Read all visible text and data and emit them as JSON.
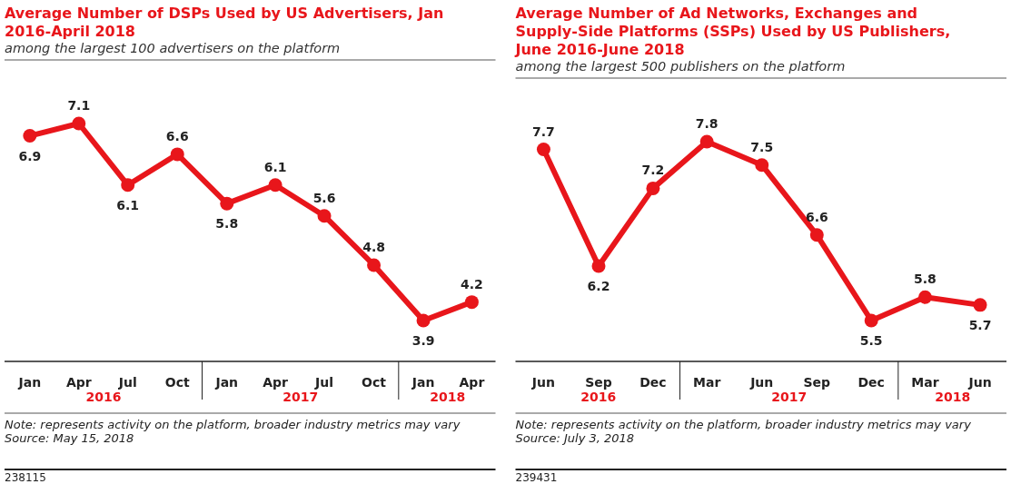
{
  "chart_data": [
    {
      "type": "line",
      "title": "Average Number of DSPs Used by US Advertisers, Jan 2016-April 2018",
      "subtitle": "among the largest 100 advertisers on the platform",
      "x": [
        "2016-01",
        "2016-04",
        "2016-07",
        "2016-10",
        "2017-01",
        "2017-04",
        "2017-07",
        "2017-10",
        "2018-01",
        "2018-04"
      ],
      "xlim": [
        "2015-11-15",
        "2018-05-15"
      ],
      "xticks": [
        {
          "value": "2016-01",
          "label": "Jan"
        },
        {
          "value": "2016-04",
          "label": "Apr"
        },
        {
          "value": "2016-07",
          "label": "Jul"
        },
        {
          "value": "2016-10",
          "label": "Oct"
        },
        {
          "value": "2017-01",
          "label": "Jan"
        },
        {
          "value": "2017-04",
          "label": "Apr"
        },
        {
          "value": "2017-07",
          "label": "Jul"
        },
        {
          "value": "2017-10",
          "label": "Oct"
        },
        {
          "value": "2018-01",
          "label": "Jan"
        },
        {
          "value": "2018-04",
          "label": "Apr"
        }
      ],
      "series": [
        {
          "color": "#e8161b",
          "values": [
            6.9,
            7.1,
            6.1,
            6.6,
            5.8,
            6.1,
            5.6,
            4.8,
            3.9,
            4.2
          ]
        }
      ],
      "data_labels": true,
      "marker": "circle",
      "tick_labels": "x",
      "annotations": [
        "2016",
        "2017",
        "2018",
        "Note: represents activity on the platform, broader industry metrics may vary",
        "Source: May 15, 2018",
        "238115"
      ]
    },
    {
      "type": "line",
      "title": "Average Number of Ad Networks, Exchanges and Supply-Side Platforms (SSPs) Used by US Publishers, June 2016-June 2018",
      "subtitle": "among the largest 500 publishers on the platform",
      "x": [
        "2016-06",
        "2016-09",
        "2016-12",
        "2017-03",
        "2017-06",
        "2017-09",
        "2017-12",
        "2018-03",
        "2018-06"
      ],
      "xlim": [
        "2016-04-15",
        "2018-07-15"
      ],
      "xticks": [
        {
          "value": "2016-06",
          "label": "Jun"
        },
        {
          "value": "2016-09",
          "label": "Sep"
        },
        {
          "value": "2016-12",
          "label": "Dec"
        },
        {
          "value": "2017-03",
          "label": "Mar"
        },
        {
          "value": "2017-06",
          "label": "Jun"
        },
        {
          "value": "2017-09",
          "label": "Sep"
        },
        {
          "value": "2017-12",
          "label": "Dec"
        },
        {
          "value": "2018-03",
          "label": "Mar"
        },
        {
          "value": "2018-06",
          "label": "Jun"
        }
      ],
      "series": [
        {
          "color": "#e8161b",
          "values": [
            7.7,
            6.2,
            7.2,
            7.8,
            7.5,
            6.6,
            5.5,
            5.8,
            5.7
          ]
        }
      ],
      "data_labels": true,
      "marker": "circle",
      "tick_labels": "x",
      "annotations": [
        "2016",
        "2017",
        "2018",
        "Note: represents activity on the platform, broader industry metrics may vary",
        "Source: July 3, 2018",
        "239431"
      ]
    }
  ]
}
